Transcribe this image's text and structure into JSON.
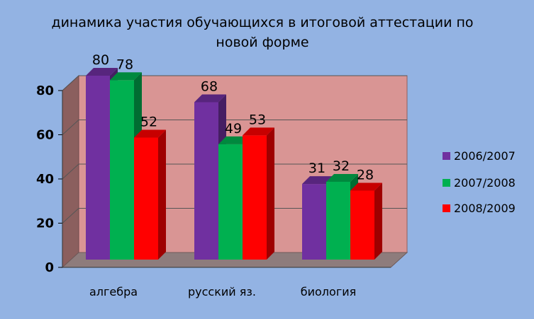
{
  "chart_data": {
    "type": "bar",
    "title_line1": "динамика участия обучающихся в итоговой аттестации по",
    "title_line2": "новой форме",
    "categories": [
      "алгебра",
      "русский яз.",
      "биология"
    ],
    "series": [
      {
        "name": "2006/2007",
        "color": "#7030a0",
        "values": [
          80,
          68,
          31
        ]
      },
      {
        "name": "2007/2008",
        "color": "#00b050",
        "values": [
          78,
          49,
          32
        ]
      },
      {
        "name": "2008/2009",
        "color": "#ff0000",
        "values": [
          52,
          53,
          28
        ]
      }
    ],
    "yticks": [
      "0",
      "20",
      "40",
      "60",
      "80"
    ],
    "ylim": [
      0,
      80
    ],
    "grid": true,
    "legend_position": "right",
    "plot_background": "#d99594",
    "three_d": true
  }
}
